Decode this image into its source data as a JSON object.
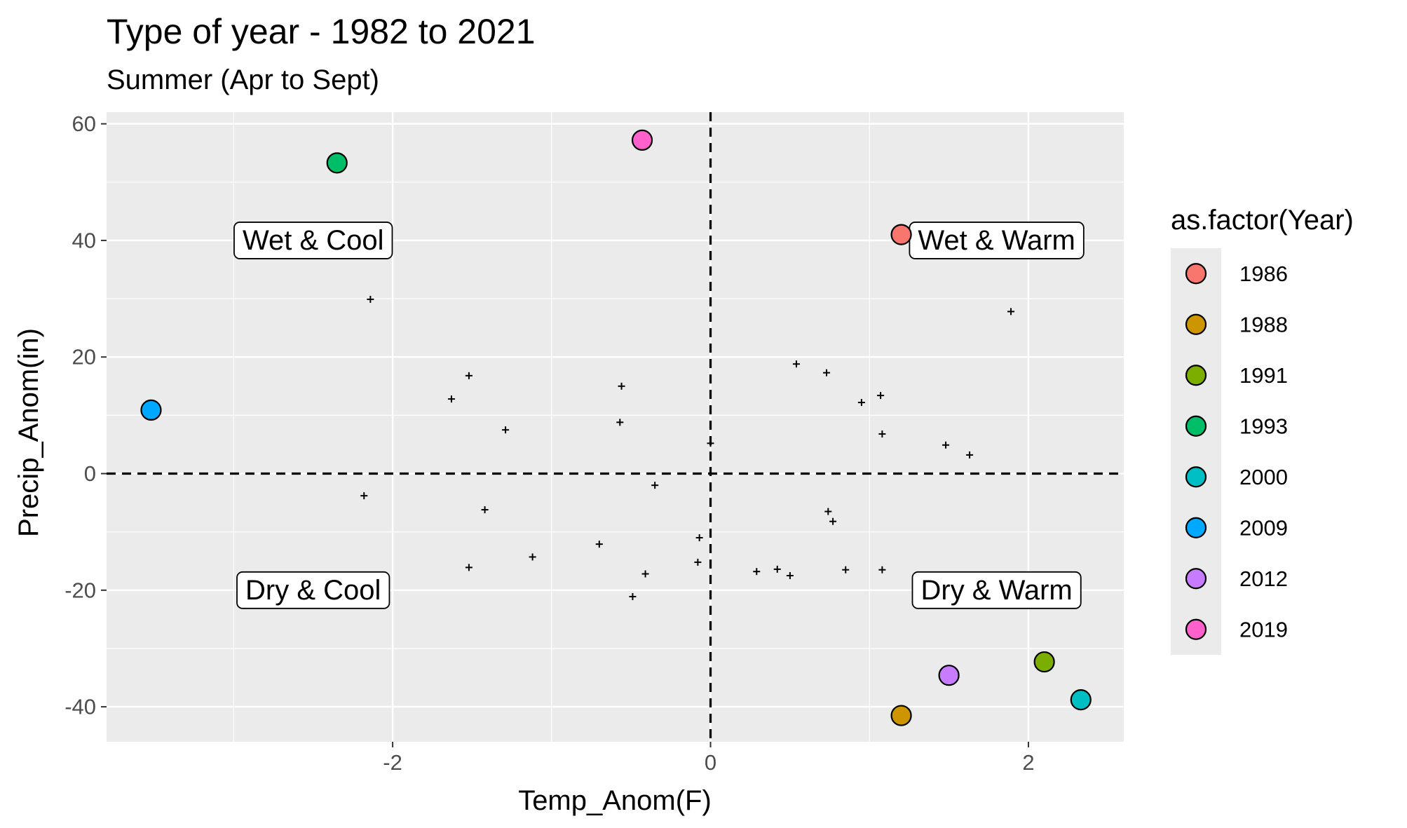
{
  "chart_data": {
    "type": "scatter",
    "title": "Type of year - 1982 to 2021",
    "subtitle": "Summer (Apr to Sept)",
    "xlabel": "Temp_Anom(F)",
    "ylabel": "Precip_Anom(in)",
    "xlim": [
      -3.8,
      2.6
    ],
    "ylim": [
      -46,
      62
    ],
    "x_ticks": [
      -2,
      0,
      2
    ],
    "x_tick_labels": [
      "-2",
      "0",
      "2"
    ],
    "y_ticks": [
      -40,
      -20,
      0,
      20,
      40,
      60
    ],
    "y_tick_labels": [
      "-40",
      "-20",
      "0",
      "20",
      "40",
      "60"
    ],
    "grid": true,
    "panel_background": "#ebebeb",
    "reference_lines": [
      {
        "axis": "x",
        "value": 0,
        "style": "dashed"
      },
      {
        "axis": "y",
        "value": 0,
        "style": "dashed"
      }
    ],
    "quadrant_labels": [
      {
        "text": "Wet & Cool",
        "x": -2.5,
        "y": 40
      },
      {
        "text": "Wet & Warm",
        "x": 1.8,
        "y": 40
      },
      {
        "text": "Dry & Cool",
        "x": -2.5,
        "y": -20
      },
      {
        "text": "Dry & Warm",
        "x": 1.8,
        "y": -20
      }
    ],
    "legend": {
      "title": "as.factor(Year)",
      "placement": "right"
    },
    "series": [
      {
        "name": "1986",
        "color": "#F8766D",
        "x": [
          1.2
        ],
        "y": [
          41
        ]
      },
      {
        "name": "1988",
        "color": "#CD9600",
        "x": [
          1.2
        ],
        "y": [
          -41.5
        ]
      },
      {
        "name": "1991",
        "color": "#7CAE00",
        "x": [
          2.1
        ],
        "y": [
          -32.3
        ]
      },
      {
        "name": "1993",
        "color": "#00BE67",
        "x": [
          -2.35
        ],
        "y": [
          53.3
        ]
      },
      {
        "name": "2000",
        "color": "#00BFC4",
        "x": [
          2.33
        ],
        "y": [
          -38.8
        ]
      },
      {
        "name": "2009",
        "color": "#00A9FF",
        "x": [
          -3.52
        ],
        "y": [
          10.9
        ]
      },
      {
        "name": "2012",
        "color": "#C77CFF",
        "x": [
          1.5
        ],
        "y": [
          -34.6
        ]
      },
      {
        "name": "2019",
        "color": "#FF61CC",
        "x": [
          -0.43
        ],
        "y": [
          57.2
        ]
      }
    ],
    "other_years": {
      "marker": "+",
      "x": [
        -2.14,
        -2.18,
        -1.63,
        -1.52,
        -1.52,
        -1.42,
        -1.29,
        -1.12,
        -0.7,
        -0.57,
        -0.56,
        -0.49,
        -0.41,
        -0.35,
        -0.08,
        -0.07,
        0.0,
        0.29,
        0.42,
        0.5,
        0.54,
        0.73,
        0.74,
        0.77,
        0.85,
        0.95,
        1.07,
        1.08,
        1.08,
        1.48,
        1.63,
        1.89
      ],
      "y": [
        29.9,
        -3.8,
        12.8,
        16.8,
        -16.1,
        -6.2,
        7.5,
        -14.3,
        -12.1,
        8.8,
        15.0,
        -21.1,
        -17.2,
        -2.0,
        -15.2,
        -11.0,
        5.2,
        -16.8,
        -16.4,
        -17.5,
        18.8,
        17.3,
        -6.5,
        -8.2,
        -16.5,
        12.2,
        13.4,
        6.8,
        -16.5,
        4.9,
        3.2,
        27.8
      ]
    }
  }
}
